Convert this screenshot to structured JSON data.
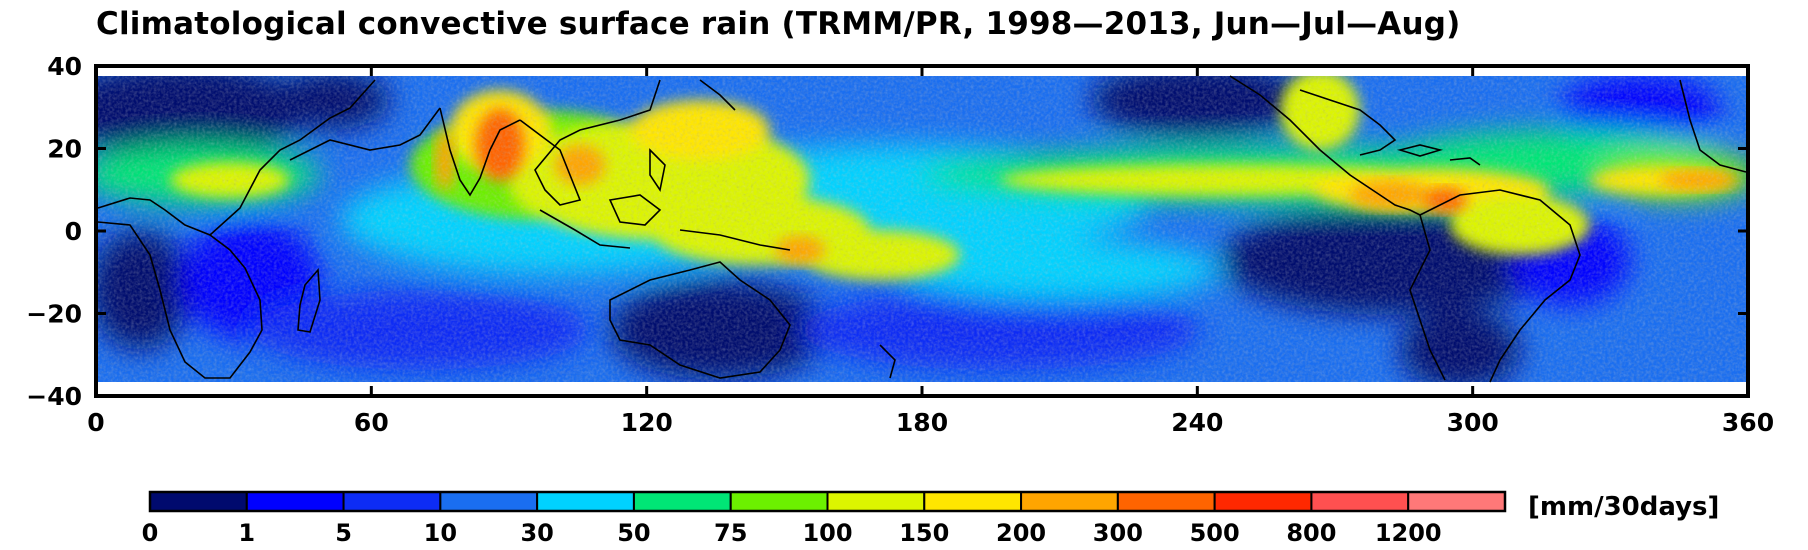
{
  "title": "Climatological convective surface rain  (TRMM/PR, 1998—2013, Jun—Jul—Aug)",
  "map": {
    "lon_range": [
      0,
      360
    ],
    "lat_range": [
      -40,
      40
    ],
    "data_lat_range": [
      -36,
      36
    ],
    "x_ticks": [
      "0",
      "60",
      "120",
      "180",
      "240",
      "300",
      "360"
    ],
    "y_ticks": [
      "40",
      "20",
      "0",
      "−20",
      "−40"
    ],
    "coastlines": true,
    "grid": false
  },
  "colorbar": {
    "units": "[mm/30days]",
    "levels": [
      "0",
      "1",
      "5",
      "10",
      "30",
      "50",
      "75",
      "100",
      "150",
      "200",
      "300",
      "500",
      "800",
      "1200"
    ],
    "colors": [
      "#000a6e",
      "#0000ff",
      "#0d2cf5",
      "#1a6ef0",
      "#00d2ff",
      "#00e676",
      "#6cf000",
      "#dcf500",
      "#ffe600",
      "#ffa500",
      "#ff6400",
      "#ff2800",
      "#ff5050",
      "#ff7878"
    ]
  }
}
